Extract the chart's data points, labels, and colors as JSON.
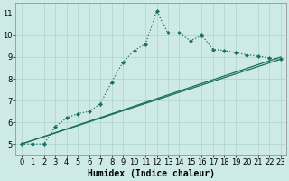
{
  "title": "",
  "xlabel": "Humidex (Indice chaleur)",
  "xlim": [
    -0.5,
    23.5
  ],
  "ylim": [
    4.5,
    11.5
  ],
  "xticks": [
    0,
    1,
    2,
    3,
    4,
    5,
    6,
    7,
    8,
    9,
    10,
    11,
    12,
    13,
    14,
    15,
    16,
    17,
    18,
    19,
    20,
    21,
    22,
    23
  ],
  "yticks": [
    5,
    6,
    7,
    8,
    9,
    10,
    11
  ],
  "background_color": "#ceeae6",
  "grid_color": "#aed4cf",
  "line_color": "#1a6e62",
  "line1_x": [
    0,
    1,
    2,
    3,
    4,
    5,
    6,
    7,
    8,
    9,
    10,
    11,
    12,
    13,
    14,
    15,
    16,
    17,
    18,
    19,
    20,
    21,
    22,
    23
  ],
  "line1_y": [
    5.0,
    5.0,
    5.0,
    5.8,
    6.2,
    6.4,
    6.5,
    6.85,
    7.85,
    8.75,
    9.3,
    9.6,
    11.1,
    10.1,
    10.1,
    9.75,
    10.0,
    9.35,
    9.3,
    9.2,
    9.1,
    9.05,
    8.95,
    8.9
  ],
  "line2_x": [
    0,
    23
  ],
  "line2_y": [
    5.0,
    9.0
  ],
  "line3_x": [
    0,
    23
  ],
  "line3_y": [
    5.0,
    8.9
  ],
  "tick_fontsize": 6,
  "xlabel_fontsize": 7
}
